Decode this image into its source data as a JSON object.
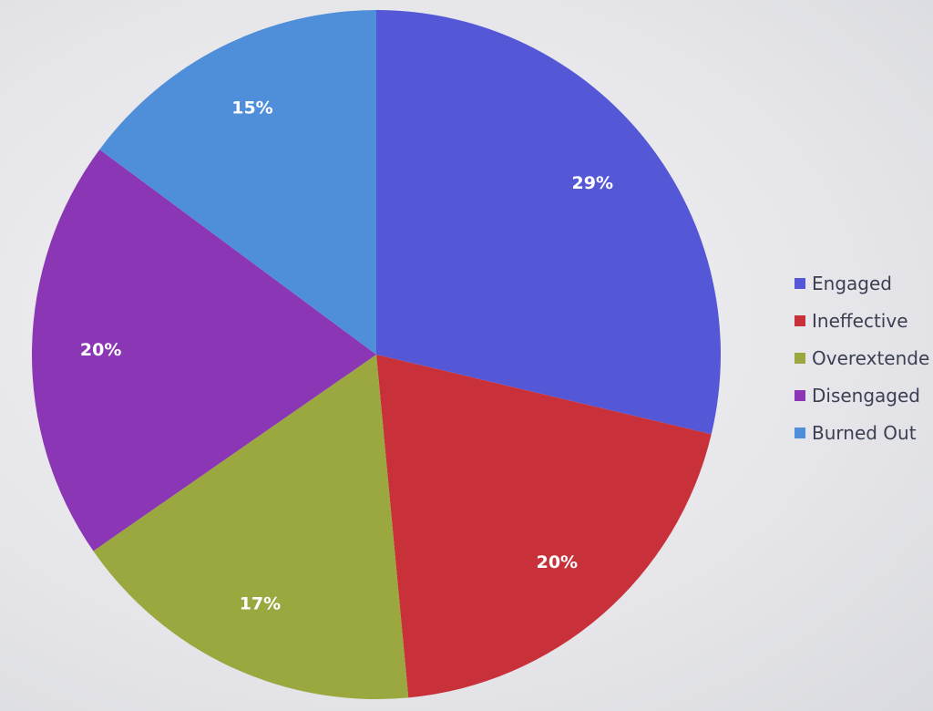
{
  "chart_data": {
    "type": "pie",
    "title": "",
    "categories": [
      "Engaged",
      "Ineffective",
      "Overextended",
      "Disengaged",
      "Burned Out"
    ],
    "values": [
      29,
      20,
      17,
      20,
      15
    ],
    "labels": [
      "29%",
      "20%",
      "17%",
      "20%",
      "15%"
    ],
    "colors": [
      "#5558d6",
      "#c9313a",
      "#9aa83f",
      "#8b37b5",
      "#4f8ed8"
    ],
    "legend": {
      "position": "right",
      "entries": [
        "Engaged",
        "Ineffective",
        "Overextende",
        "Disengaged",
        "Burned Out"
      ]
    }
  }
}
